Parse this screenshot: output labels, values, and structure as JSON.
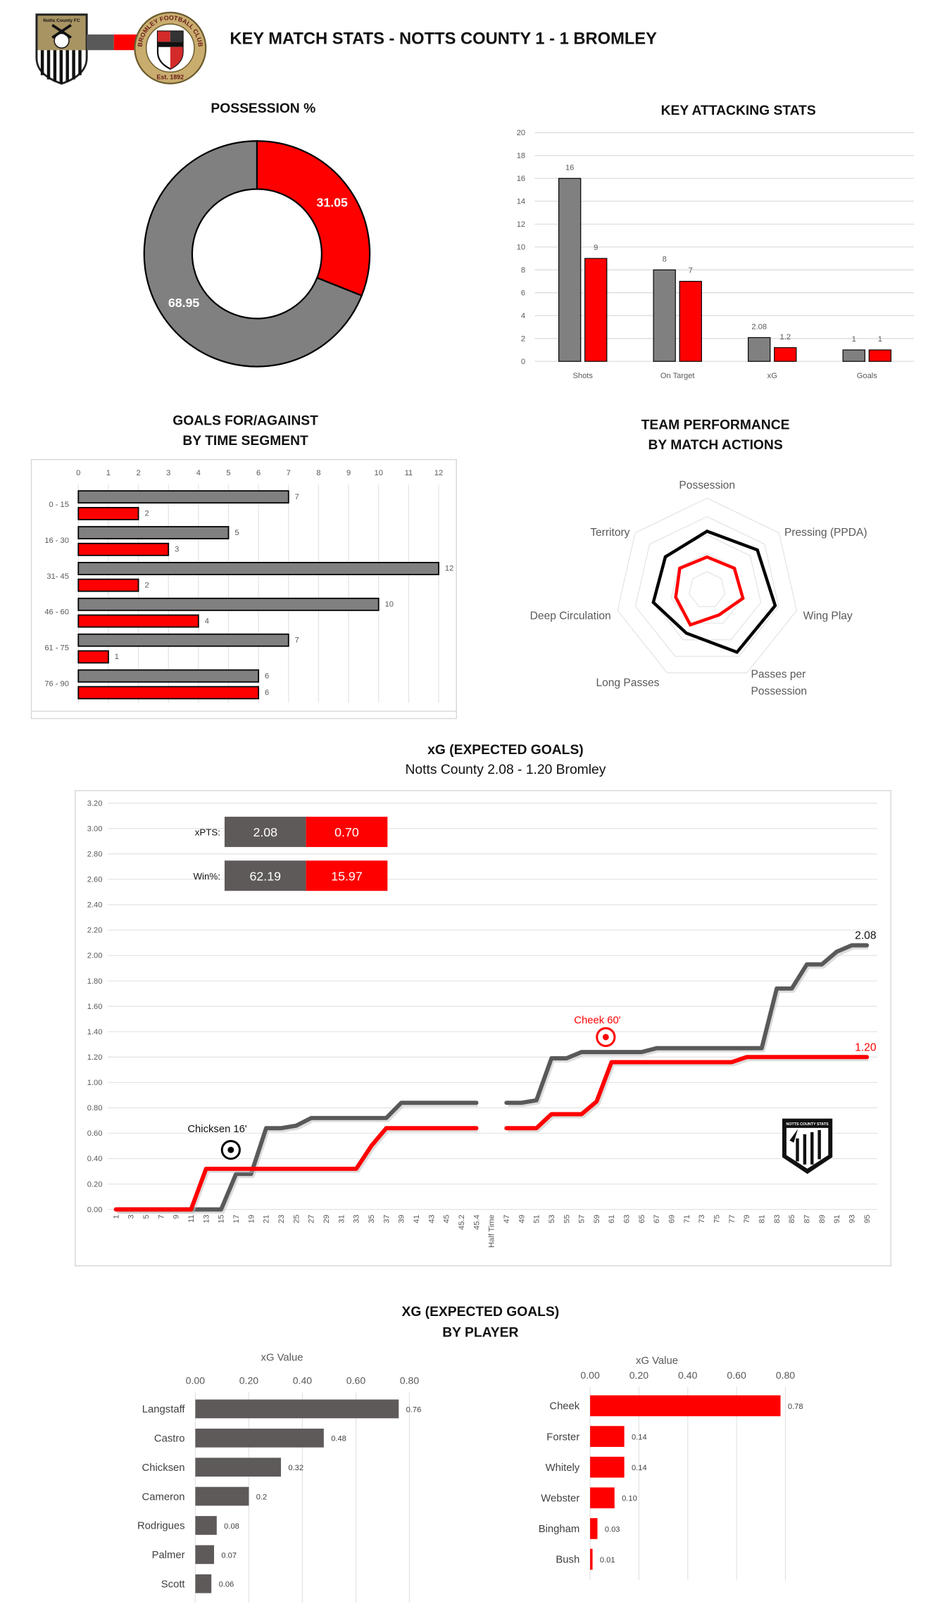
{
  "header": {
    "title": "KEY MATCH STATS - NOTTS COUNTY 1 - 1 BROMLEY",
    "home_crest_text": "Notts County FC",
    "away_crest_text": "BROMLEY FOOTBALL CLUB",
    "away_crest_est": "Est. 1892"
  },
  "colors": {
    "home": "#808080",
    "home_line": "#595959",
    "home_player": "#5e5a59",
    "away": "#ff0000"
  },
  "sections": {
    "possession_title": "POSSESSION %",
    "attacking_title": "KEY ATTACKING STATS",
    "goals_title_1": "GOALS FOR/AGAINST",
    "goals_title_2": "BY TIME SEGMENT",
    "radar_title_1": "TEAM PERFORMANCE",
    "radar_title_2": "BY MATCH ACTIONS",
    "xg_title": "xG (EXPECTED GOALS)",
    "xg_subtitle": "Notts County 2.08 - 1.20 Bromley",
    "player_title_1": "XG (EXPECTED GOALS)",
    "player_title_2": "BY PLAYER",
    "stats_logo_text": "NOTTS COUNTY STATS"
  },
  "chart_data": [
    {
      "type": "pie",
      "title": "POSSESSION %",
      "values": [
        31.05,
        68.95
      ],
      "value_labels": [
        "31.05",
        "68.95"
      ],
      "colors": [
        "#ff0000",
        "#808080"
      ]
    },
    {
      "type": "bar",
      "title": "KEY ATTACKING STATS",
      "categories": [
        "Shots",
        "On Target",
        "xG",
        "Goals"
      ],
      "series": [
        {
          "values": [
            16,
            8,
            2.08,
            1
          ],
          "color": "#808080"
        },
        {
          "values": [
            9,
            7,
            1.2,
            1
          ],
          "color": "#ff0000"
        }
      ],
      "ylim": [
        0,
        20
      ],
      "yticks": [
        "0",
        "2",
        "4",
        "6",
        "8",
        "10",
        "12",
        "14",
        "16",
        "18",
        "20"
      ],
      "grid": true
    },
    {
      "type": "bar",
      "orientation": "horizontal",
      "title": "GOALS FOR/AGAINST BY TIME SEGMENT",
      "categories": [
        "0 - 15",
        "16 - 30",
        "31- 45",
        "46 - 60",
        "61 - 75",
        "76 - 90"
      ],
      "series": [
        {
          "values": [
            7,
            5,
            12,
            10,
            7,
            6
          ],
          "color": "#808080"
        },
        {
          "values": [
            2,
            3,
            2,
            4,
            1,
            6
          ],
          "color": "#ff0000"
        }
      ],
      "xlim": [
        0,
        12
      ],
      "xticks": [
        "0",
        "1",
        "2",
        "3",
        "4",
        "5",
        "6",
        "7",
        "8",
        "9",
        "10",
        "11",
        "12"
      ]
    },
    {
      "type": "radar",
      "title": "TEAM PERFORMANCE BY MATCH ACTIONS",
      "axes": [
        [
          "Possession"
        ],
        [
          "Pressing (PPDA)"
        ],
        [
          "Wing Play"
        ],
        [
          "Passes per",
          "Possession"
        ],
        [
          "Long Passes"
        ],
        [
          "Deep Circulation"
        ],
        [
          "Territory"
        ]
      ],
      "series": [
        {
          "values": [
            0.64,
            0.7,
            0.76,
            0.75,
            0.52,
            0.6,
            0.58
          ],
          "color": "#000000"
        },
        {
          "values": [
            0.36,
            0.38,
            0.4,
            0.3,
            0.42,
            0.35,
            0.38
          ],
          "color": "#ff0000"
        }
      ],
      "rlim": [
        0,
        1
      ]
    },
    {
      "type": "line",
      "title": "xG (EXPECTED GOALS)",
      "x": [
        "1",
        "3",
        "5",
        "7",
        "9",
        "11",
        "13",
        "15",
        "17",
        "19",
        "21",
        "23",
        "25",
        "27",
        "29",
        "31",
        "33",
        "35",
        "37",
        "39",
        "41",
        "43",
        "45",
        "45.2",
        "45.4",
        "Half Time",
        "47",
        "49",
        "51",
        "53",
        "55",
        "57",
        "59",
        "61",
        "63",
        "65",
        "67",
        "69",
        "71",
        "73",
        "75",
        "77",
        "79",
        "81",
        "83",
        "85",
        "87",
        "89",
        "91",
        "93",
        "95"
      ],
      "series": [
        {
          "name": "Notts County",
          "color": "#595959",
          "end_label": "2.08",
          "values": [
            0,
            0,
            0,
            0,
            0,
            0,
            0,
            0,
            0.28,
            0.28,
            0.64,
            0.64,
            0.66,
            0.72,
            0.72,
            0.72,
            0.72,
            0.72,
            0.72,
            0.84,
            0.84,
            0.84,
            0.84,
            0.84,
            0.84,
            null,
            0.84,
            0.84,
            0.86,
            1.19,
            1.19,
            1.24,
            1.24,
            1.24,
            1.24,
            1.24,
            1.27,
            1.27,
            1.27,
            1.27,
            1.27,
            1.27,
            1.27,
            1.27,
            1.74,
            1.74,
            1.93,
            1.93,
            2.03,
            2.08,
            2.08
          ]
        },
        {
          "name": "Bromley",
          "color": "#ff0000",
          "end_label": "1.20",
          "values": [
            0,
            0,
            0,
            0,
            0,
            0,
            0.32,
            0.32,
            0.32,
            0.32,
            0.32,
            0.32,
            0.32,
            0.32,
            0.32,
            0.32,
            0.32,
            0.5,
            0.64,
            0.64,
            0.64,
            0.64,
            0.64,
            0.64,
            0.64,
            null,
            0.64,
            0.64,
            0.64,
            0.75,
            0.75,
            0.75,
            0.85,
            1.16,
            1.16,
            1.16,
            1.16,
            1.16,
            1.16,
            1.16,
            1.16,
            1.16,
            1.2,
            1.2,
            1.2,
            1.2,
            1.2,
            1.2,
            1.2,
            1.2,
            1.2
          ]
        }
      ],
      "ylim": [
        0,
        3.2
      ],
      "yticks": [
        "0.00",
        "0.20",
        "0.40",
        "0.60",
        "0.80",
        "1.00",
        "1.20",
        "1.40",
        "1.60",
        "1.80",
        "2.00",
        "2.20",
        "2.40",
        "2.60",
        "2.80",
        "3.00",
        "3.20"
      ],
      "annotations": [
        {
          "text": "Chicksen 16'",
          "team": "home",
          "x": "16",
          "y": 0.28
        },
        {
          "text": "Cheek 60'",
          "team": "away",
          "x": "60",
          "y": 1.16
        }
      ],
      "table": {
        "xpts": {
          "label": "xPTS:",
          "home": "2.08",
          "away": "0.70"
        },
        "win": {
          "label": "Win%:",
          "home": "62.19",
          "away": "15.97"
        }
      }
    },
    {
      "type": "bar",
      "orientation": "horizontal",
      "title": "XG (EXPECTED GOALS) BY PLAYER",
      "xlabel": "xG Value",
      "categories": [
        "Langstaff",
        "Castro",
        "Chicksen",
        "Cameron",
        "Rodrigues",
        "Palmer",
        "Scott"
      ],
      "values": [
        0.76,
        0.48,
        0.32,
        0.2,
        0.08,
        0.07,
        0.06
      ],
      "value_labels": [
        "0.76",
        "0.48",
        "0.32",
        "0.2",
        "0.08",
        "0.07",
        "0.06"
      ],
      "xlim": [
        0,
        0.8
      ],
      "xticks": [
        "0.00",
        "0.20",
        "0.40",
        "0.60",
        "0.80"
      ],
      "color": "#5e5a59"
    },
    {
      "type": "bar",
      "orientation": "horizontal",
      "title": "XG (EXPECTED GOALS) BY PLAYER",
      "xlabel": "xG Value",
      "categories": [
        "Cheek",
        "Forster",
        "Whitely",
        "Webster",
        "Bingham",
        "Bush"
      ],
      "values": [
        0.78,
        0.14,
        0.14,
        0.1,
        0.03,
        0.01
      ],
      "value_labels": [
        "0.78",
        "0.14",
        "0.14",
        "0.10",
        "0.03",
        "0.01"
      ],
      "xlim": [
        0,
        0.8
      ],
      "xticks": [
        "0.00",
        "0.20",
        "0.40",
        "0.60",
        "0.80"
      ],
      "color": "#ff0000"
    }
  ]
}
